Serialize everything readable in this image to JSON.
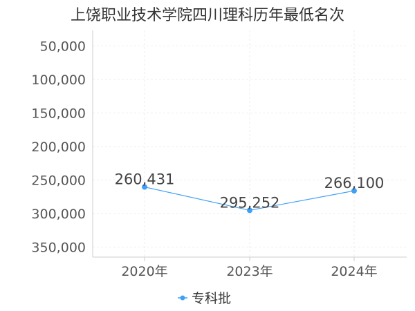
{
  "chart_data": {
    "type": "line",
    "title": "上饶职业技术学院四川理科历年最低名次",
    "categories": [
      "2020年",
      "2023年",
      "2024年"
    ],
    "series": [
      {
        "name": "专科批",
        "values": [
          260431,
          295252,
          266100
        ],
        "color": "#3FA0F8"
      }
    ],
    "data_labels": [
      "260,431",
      "295,252",
      "266,100"
    ],
    "y_ticks": [
      50000,
      100000,
      150000,
      200000,
      250000,
      300000,
      350000
    ],
    "y_tick_labels": [
      "50,000",
      "100,000",
      "150,000",
      "200,000",
      "250,000",
      "300,000",
      "350,000"
    ],
    "ylim": [
      27000,
      365000
    ],
    "y_inverted": true,
    "grid": true,
    "legend_position": "bottom-center"
  }
}
